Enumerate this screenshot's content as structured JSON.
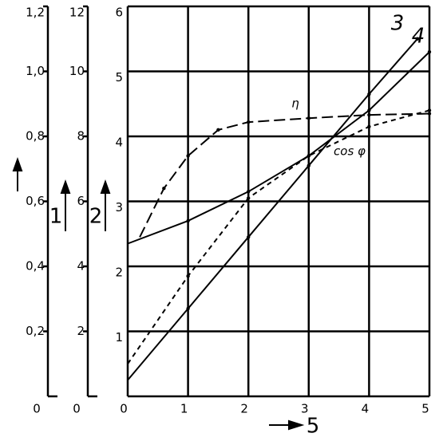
{
  "chart_data": {
    "type": "line",
    "xlim": [
      0,
      5
    ],
    "xticks": [
      0,
      1,
      2,
      3,
      4,
      5
    ],
    "ylim": [
      0,
      6
    ],
    "yticks": [
      1,
      2,
      3,
      4,
      5,
      6
    ],
    "xlabel": "5",
    "grid": true,
    "extra_axes": [
      {
        "label": "1",
        "ylim": [
          0,
          1.2
        ],
        "yticks": [
          0,
          {
            "value": 0.2,
            "label": "0,2"
          },
          {
            "value": 0.4,
            "label": "0,4"
          },
          {
            "value": 0.6,
            "label": "0,6"
          },
          {
            "value": 0.8,
            "label": "0,8"
          },
          {
            "value": 1.0,
            "label": "1,0"
          },
          {
            "value": 1.2,
            "label": "1,2"
          }
        ]
      },
      {
        "label": "2",
        "ylim": [
          0,
          12
        ],
        "yticks": [
          0,
          2,
          4,
          6,
          8,
          10,
          12
        ]
      }
    ],
    "series": [
      {
        "name": "3",
        "color": "#000000",
        "line_style": "solid",
        "x": [
          0,
          1,
          2,
          3,
          4,
          4.8
        ],
        "values": [
          0.25,
          1.35,
          2.45,
          3.55,
          4.65,
          5.5
        ]
      },
      {
        "name": "4",
        "color": "#000000",
        "line_style": "solid",
        "x": [
          0,
          1,
          2,
          3,
          4,
          5
        ],
        "values": [
          2.35,
          2.7,
          3.15,
          3.7,
          4.4,
          5.3
        ]
      },
      {
        "name": "η",
        "color": "#000000",
        "line_style": "long-dash",
        "x": [
          0.2,
          0.6,
          1,
          1.5,
          2,
          3,
          4,
          5
        ],
        "values": [
          2.45,
          3.2,
          3.7,
          4.1,
          4.22,
          4.28,
          4.33,
          4.35
        ]
      },
      {
        "name": "cos φ",
        "color": "#000000",
        "line_style": "short-dash",
        "x": [
          0,
          1,
          2,
          3,
          4,
          5
        ],
        "values": [
          0.5,
          1.85,
          3.05,
          3.7,
          4.15,
          4.4
        ]
      }
    ]
  }
}
